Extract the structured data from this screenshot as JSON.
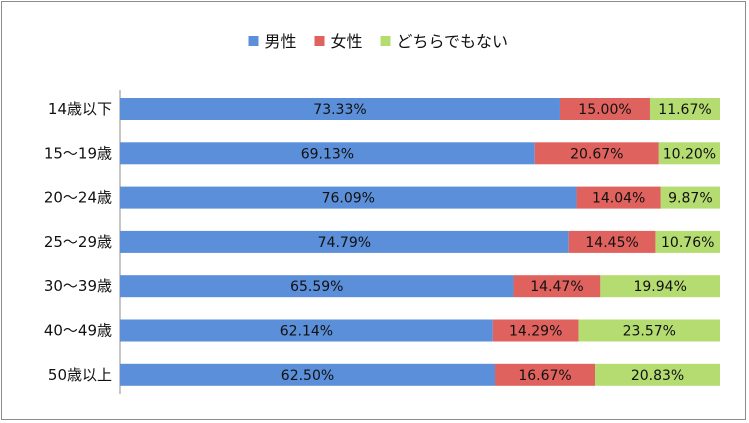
{
  "chart_data": {
    "type": "bar",
    "orientation": "horizontal",
    "stacked": "percent",
    "title": "",
    "xlabel": "",
    "ylabel": "",
    "legend_position": "top",
    "categories": [
      "14歳以下",
      "15〜19歳",
      "20〜24歳",
      "25〜29歳",
      "30〜39歳",
      "40〜49歳",
      "50歳以上"
    ],
    "series": [
      {
        "name": "男性",
        "color": "#5b8fd9",
        "values": [
          73.33,
          69.13,
          76.09,
          74.79,
          65.59,
          62.14,
          62.5
        ],
        "labels": [
          "73.33%",
          "69.13%",
          "76.09%",
          "74.79%",
          "65.59%",
          "62.14%",
          "62.50%"
        ]
      },
      {
        "name": "女性",
        "color": "#e0625e",
        "values": [
          15.0,
          20.67,
          14.04,
          14.45,
          14.47,
          14.29,
          16.67
        ],
        "labels": [
          "15.00%",
          "20.67%",
          "14.04%",
          "14.45%",
          "14.47%",
          "14.29%",
          "16.67%"
        ]
      },
      {
        "name": "どちらでもない",
        "color": "#b5dc71",
        "values": [
          11.67,
          10.2,
          9.87,
          10.76,
          19.94,
          23.57,
          20.83
        ],
        "labels": [
          "11.67%",
          "10.20%",
          "9.87%",
          "10.76%",
          "19.94%",
          "23.57%",
          "20.83%"
        ]
      }
    ],
    "xlim": [
      0,
      100
    ],
    "grid": false
  }
}
